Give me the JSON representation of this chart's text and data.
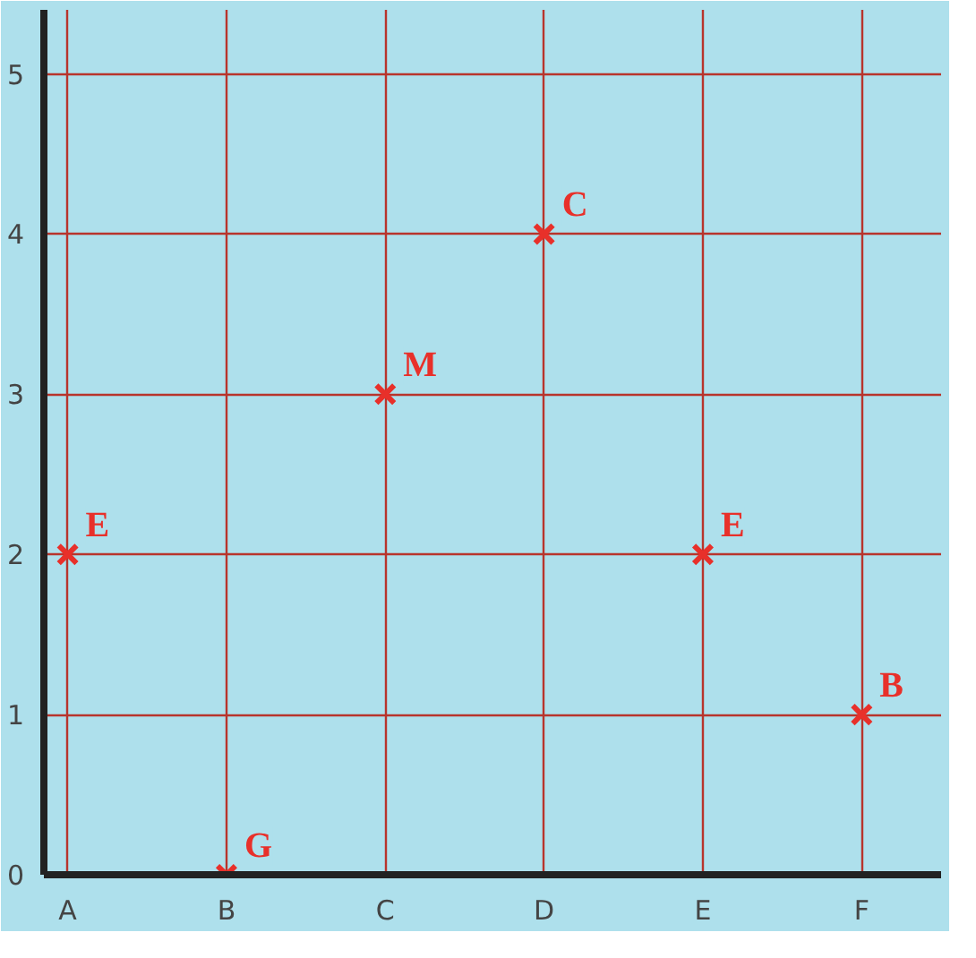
{
  "chart_data": {
    "type": "scatter",
    "categories": [
      "A",
      "B",
      "C",
      "D",
      "E",
      "F"
    ],
    "values": [
      2,
      0,
      3,
      4,
      2,
      1
    ],
    "color": "#e8302a",
    "ylim": [
      0,
      5.4
    ],
    "yticks": [
      0,
      1,
      2,
      3,
      4,
      5
    ],
    "grid": true,
    "marker": "cross",
    "annotations": [
      {
        "text": "E",
        "x": "A",
        "y": 2
      },
      {
        "text": "G",
        "x": "B",
        "y": 0
      },
      {
        "text": "M",
        "x": "C",
        "y": 3
      },
      {
        "text": "C",
        "x": "D",
        "y": 4
      },
      {
        "text": "E",
        "x": "E",
        "y": 2
      },
      {
        "text": "B",
        "x": "F",
        "y": 1
      }
    ]
  }
}
